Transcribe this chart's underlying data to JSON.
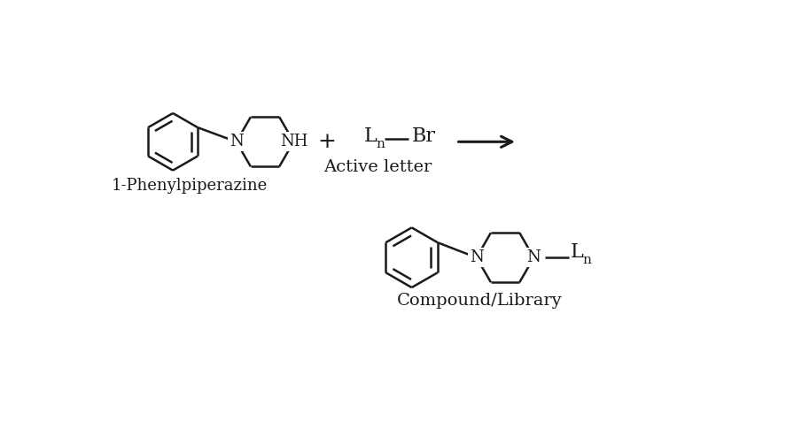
{
  "bg_color": "#ffffff",
  "line_color": "#1a1a1a",
  "line_width": 1.8,
  "font_size_label": 13,
  "font_size_atom": 13,
  "font_size_subscript": 10,
  "label_1": "1-Phenylpiperazine",
  "label_2": "Active letter",
  "label_3": "Compound/Library"
}
